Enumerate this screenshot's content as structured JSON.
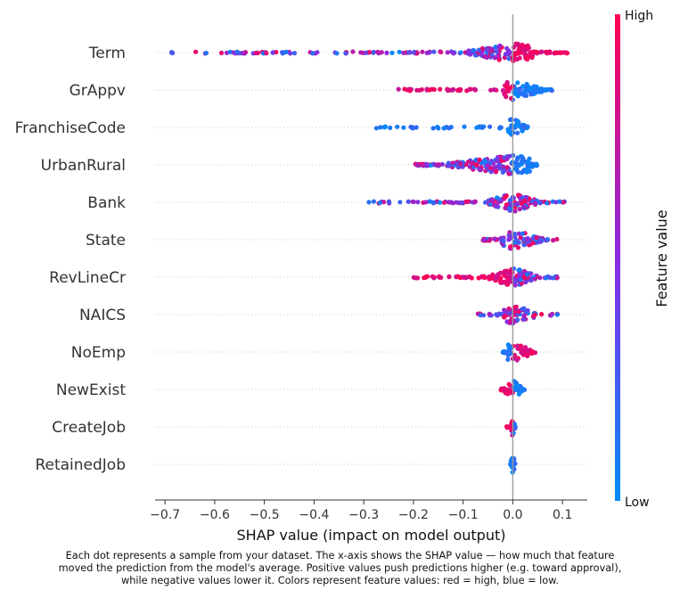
{
  "chart_data": {
    "type": "scatter",
    "subtype": "shap-beeswarm",
    "xlabel": "SHAP value (impact on model output)",
    "xlim": [
      -0.72,
      0.15
    ],
    "xticks": [
      "−0.7",
      "−0.6",
      "−0.5",
      "−0.4",
      "−0.3",
      "−0.2",
      "−0.1",
      "0.0",
      "0.1"
    ],
    "xtick_values": [
      -0.7,
      -0.6,
      -0.5,
      -0.4,
      -0.3,
      -0.2,
      -0.1,
      0.0,
      0.1
    ],
    "colorbar": {
      "title": "Feature value",
      "high_label": "High",
      "low_label": "Low",
      "high_color": "#ff0052",
      "mid_color": "#8a2be2",
      "low_color": "#008bfb"
    },
    "features": [
      {
        "name": "Term",
        "min": -0.69,
        "max": 0.11,
        "dense_low": -0.09,
        "dense_high": 0.04,
        "low_side": "mixed",
        "high_side": "high"
      },
      {
        "name": "GrAppv",
        "min": -0.23,
        "max": 0.08,
        "dense_low": -0.02,
        "dense_high": 0.06,
        "low_side": "high",
        "high_side": "low"
      },
      {
        "name": "FranchiseCode",
        "min": -0.28,
        "max": 0.03,
        "dense_low": -0.01,
        "dense_high": 0.025,
        "low_side": "low",
        "high_side": "low"
      },
      {
        "name": "UrbanRural",
        "min": -0.2,
        "max": 0.05,
        "dense_low": -0.13,
        "dense_high": 0.04,
        "low_side": "mixed",
        "high_side": "low"
      },
      {
        "name": "Bank",
        "min": -0.29,
        "max": 0.11,
        "dense_low": -0.05,
        "dense_high": 0.05,
        "low_side": "mixed",
        "high_side": "mixed"
      },
      {
        "name": "State",
        "min": -0.06,
        "max": 0.09,
        "dense_low": -0.03,
        "dense_high": 0.06,
        "low_side": "mixed",
        "high_side": "mixed"
      },
      {
        "name": "RevLineCr",
        "min": -0.2,
        "max": 0.09,
        "dense_low": -0.05,
        "dense_high": 0.05,
        "low_side": "high",
        "high_side": "mixed"
      },
      {
        "name": "NAICS",
        "min": -0.07,
        "max": 0.1,
        "dense_low": -0.02,
        "dense_high": 0.05,
        "low_side": "mixed",
        "high_side": "mixed"
      },
      {
        "name": "NoEmp",
        "min": -0.02,
        "max": 0.055,
        "dense_low": -0.015,
        "dense_high": 0.04,
        "low_side": "low",
        "high_side": "high"
      },
      {
        "name": "NewExist",
        "min": -0.025,
        "max": 0.025,
        "dense_low": -0.02,
        "dense_high": 0.02,
        "low_side": "high",
        "high_side": "low"
      },
      {
        "name": "CreateJob",
        "min": -0.015,
        "max": 0.005,
        "dense_low": -0.005,
        "dense_high": 0.005,
        "low_side": "high",
        "high_side": "low"
      },
      {
        "name": "RetainedJob",
        "min": -0.005,
        "max": 0.005,
        "dense_low": -0.004,
        "dense_high": 0.004,
        "low_side": "low",
        "high_side": "low"
      }
    ]
  },
  "caption": {
    "line1": "Each dot represents a sample from your dataset. The x-axis shows the SHAP value — how much that feature",
    "line2": "moved the prediction from the model's average. Positive values push predictions higher (e.g. toward approval),",
    "line3": "while negative values lower it. Colors represent feature values: red = high, blue = low."
  }
}
